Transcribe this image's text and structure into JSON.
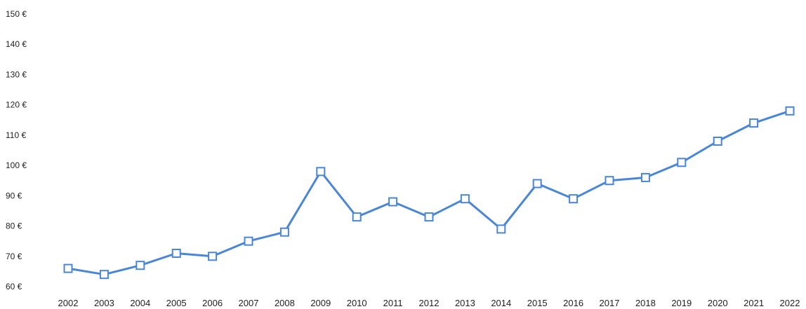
{
  "chart_data": {
    "type": "line",
    "title": "",
    "xlabel": "",
    "ylabel": "",
    "ylim": [
      60,
      150
    ],
    "y_ticks": [
      {
        "value": 150,
        "label": "150 €"
      },
      {
        "value": 140,
        "label": "140 €"
      },
      {
        "value": 130,
        "label": "130 €"
      },
      {
        "value": 120,
        "label": "120 €"
      },
      {
        "value": 110,
        "label": "110 €"
      },
      {
        "value": 100,
        "label": "100 €"
      },
      {
        "value": 90,
        "label": "90 €"
      },
      {
        "value": 80,
        "label": "80 €"
      },
      {
        "value": 70,
        "label": "70 €"
      },
      {
        "value": 60,
        "label": "60 €"
      }
    ],
    "categories": [
      "2002",
      "2003",
      "2004",
      "2005",
      "2006",
      "2007",
      "2008",
      "2009",
      "2010",
      "2011",
      "2012",
      "2013",
      "2014",
      "2015",
      "2016",
      "2017",
      "2018",
      "2019",
      "2020",
      "2021",
      "2022"
    ],
    "series": [
      {
        "values": [
          66,
          64,
          67,
          71,
          70,
          75,
          78,
          98,
          83,
          88,
          83,
          89,
          79,
          94,
          89,
          95,
          96,
          101,
          108,
          114,
          118
        ]
      }
    ],
    "grid": false,
    "legend": "none",
    "colors": {
      "line": "#4a86d8",
      "marker_fill": "#ffffff",
      "marker_stroke": "#4a86d8"
    }
  }
}
